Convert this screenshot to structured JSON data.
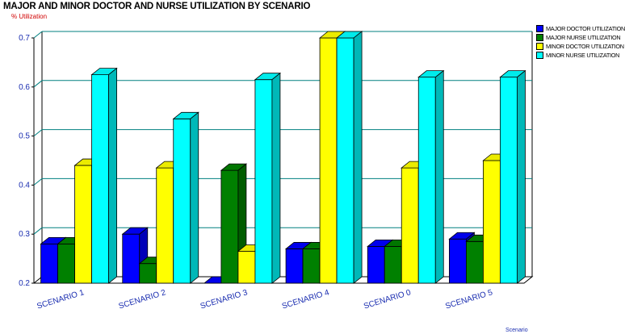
{
  "chart_data": {
    "type": "bar",
    "title": "MAJOR AND MINOR DOCTOR AND NURSE UTILIZATION BY SCENARIO",
    "ylabel": "% Utilization",
    "xlabel": "Scenario",
    "ylim": [
      0.2,
      0.7
    ],
    "yticks": [
      "0.2",
      "0.3",
      "0.4",
      "0.5",
      "0.6",
      "0.7"
    ],
    "grid": true,
    "legend_position": "top-right",
    "categories": [
      "SCENARIO 1",
      "SCENARIO 2",
      "SCENARIO 3",
      "SCENARIO 4",
      "SCENARIO 0",
      "SCENARIO 5"
    ],
    "series": [
      {
        "name": "MAJOR DOCTOR UTILIZATION",
        "color": "#0000ff",
        "values": [
          0.28,
          0.3,
          0.2,
          0.27,
          0.275,
          0.29
        ]
      },
      {
        "name": "MAJOR NURSE UTILIZATION",
        "color": "#008000",
        "values": [
          0.28,
          0.24,
          0.43,
          0.27,
          0.275,
          0.285
        ]
      },
      {
        "name": "MINOR DOCTOR UTILIZATION",
        "color": "#ffff00",
        "values": [
          0.44,
          0.435,
          0.265,
          0.7,
          0.435,
          0.45
        ]
      },
      {
        "name": "MINOR NURSE UTILIZATION",
        "color": "#00ffff",
        "values": [
          0.625,
          0.535,
          0.615,
          0.7,
          0.62,
          0.62
        ]
      }
    ]
  }
}
